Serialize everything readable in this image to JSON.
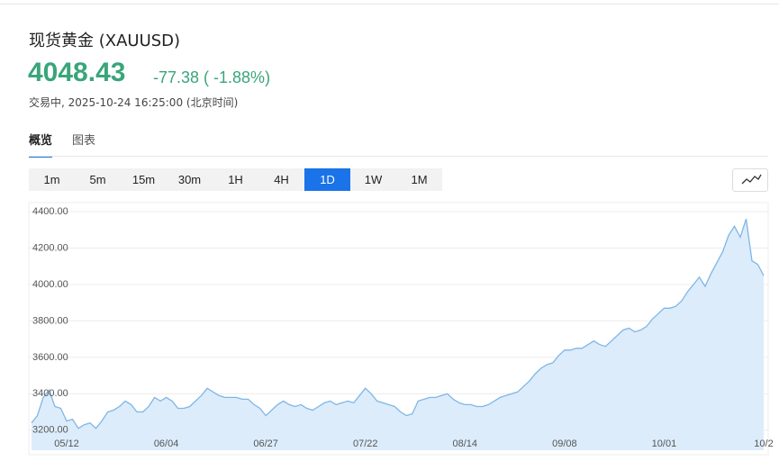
{
  "header": {
    "title": "现货黄金 (XAUUSD)",
    "price": "4048.43",
    "change": "-77.38 ( -1.88%)",
    "status": "交易中, 2025-10-24 16:25:00 (北京时间)"
  },
  "tabs": [
    "概览",
    "图表"
  ],
  "selected_tab": 0,
  "intervals": [
    "1m",
    "5m",
    "15m",
    "30m",
    "1H",
    "4H",
    "1D",
    "1W",
    "1M"
  ],
  "selected_interval": 6,
  "chart_data": {
    "type": "area",
    "color": "#7fb6e6",
    "fill": "#dcecfb",
    "grid": true,
    "ylim": [
      3090,
      4435
    ],
    "yticks": [
      {
        "value": 3200,
        "label": "3200.00"
      },
      {
        "value": 3400,
        "label": "3400.00"
      },
      {
        "value": 3600,
        "label": "3600.00"
      },
      {
        "value": 3800,
        "label": "3800.00"
      },
      {
        "value": 4000,
        "label": "4000.00"
      },
      {
        "value": 4200,
        "label": "4200.00"
      },
      {
        "value": 4400,
        "label": "4400.00"
      }
    ],
    "categories": [
      null,
      null,
      null,
      null,
      null,
      null,
      "05/12",
      null,
      null,
      null,
      null,
      null,
      null,
      null,
      null,
      null,
      null,
      null,
      null,
      null,
      null,
      null,
      null,
      "06/04",
      null,
      null,
      null,
      null,
      null,
      null,
      null,
      null,
      null,
      null,
      null,
      null,
      null,
      null,
      null,
      null,
      "06/27",
      null,
      null,
      null,
      null,
      null,
      null,
      null,
      null,
      null,
      null,
      null,
      null,
      null,
      null,
      null,
      null,
      "07/22",
      null,
      null,
      null,
      null,
      null,
      null,
      null,
      null,
      null,
      null,
      null,
      null,
      null,
      null,
      null,
      null,
      "08/14",
      null,
      null,
      null,
      null,
      null,
      null,
      null,
      null,
      null,
      null,
      null,
      null,
      null,
      null,
      null,
      null,
      "09/08",
      null,
      null,
      null,
      null,
      null,
      null,
      null,
      null,
      null,
      null,
      null,
      null,
      null,
      null,
      null,
      null,
      "10/01",
      null,
      null,
      null,
      null,
      null,
      null,
      null,
      null,
      null,
      null,
      null,
      null,
      null,
      null,
      null,
      null,
      "10/2"
    ],
    "values": [
      3240,
      3280,
      3380,
      3420,
      3330,
      3320,
      3250,
      3260,
      3210,
      3230,
      3240,
      3210,
      3250,
      3300,
      3310,
      3330,
      3360,
      3340,
      3300,
      3300,
      3330,
      3380,
      3360,
      3380,
      3360,
      3320,
      3320,
      3330,
      3360,
      3390,
      3430,
      3410,
      3390,
      3380,
      3380,
      3380,
      3370,
      3370,
      3340,
      3320,
      3280,
      3310,
      3340,
      3360,
      3340,
      3330,
      3340,
      3320,
      3310,
      3330,
      3350,
      3360,
      3340,
      3350,
      3360,
      3350,
      3390,
      3430,
      3400,
      3360,
      3350,
      3340,
      3330,
      3300,
      3280,
      3290,
      3360,
      3370,
      3380,
      3380,
      3390,
      3400,
      3370,
      3350,
      3340,
      3340,
      3330,
      3330,
      3340,
      3360,
      3380,
      3390,
      3400,
      3410,
      3440,
      3470,
      3510,
      3540,
      3560,
      3570,
      3610,
      3640,
      3640,
      3650,
      3650,
      3670,
      3690,
      3670,
      3660,
      3690,
      3720,
      3750,
      3760,
      3740,
      3750,
      3770,
      3810,
      3840,
      3870,
      3870,
      3880,
      3910,
      3960,
      4000,
      4040,
      3990,
      4060,
      4120,
      4180,
      4270,
      4320,
      4260,
      4360,
      4130,
      4110,
      4048.43
    ]
  }
}
